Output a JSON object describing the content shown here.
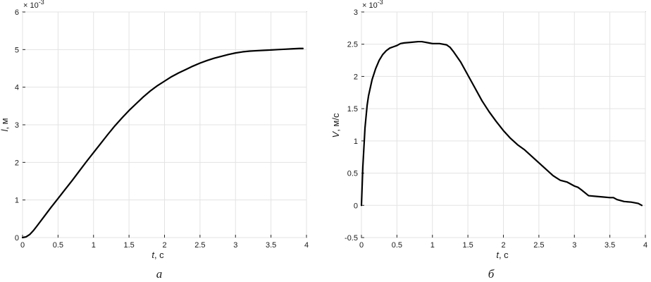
{
  "chart_data": [
    {
      "type": "line",
      "caption": "а",
      "xlabel_var": "t",
      "xlabel_unit": ", с",
      "ylabel_var": "l",
      "ylabel_unit": ", м",
      "y_exponent_base": "× 10",
      "y_exponent_power": "-3",
      "xlim": [
        0,
        4
      ],
      "ylim": [
        0,
        6
      ],
      "xticks": [
        "0",
        "0.5",
        "1",
        "1.5",
        "2",
        "2.5",
        "3",
        "3.5",
        "4"
      ],
      "yticks": [
        "0",
        "1",
        "2",
        "3",
        "4",
        "5",
        "6"
      ],
      "grid": true,
      "series": [
        {
          "x": [
            0,
            0.05,
            0.1,
            0.15,
            0.2,
            0.3,
            0.4,
            0.5,
            0.6,
            0.7,
            0.8,
            0.9,
            1.0,
            1.1,
            1.2,
            1.3,
            1.4,
            1.5,
            1.6,
            1.7,
            1.8,
            1.9,
            2.0,
            2.1,
            2.2,
            2.3,
            2.4,
            2.5,
            2.6,
            2.7,
            2.8,
            2.9,
            3.0,
            3.1,
            3.2,
            3.3,
            3.4,
            3.5,
            3.6,
            3.7,
            3.8,
            3.9,
            3.95
          ],
          "y": [
            0,
            0.02,
            0.08,
            0.18,
            0.3,
            0.55,
            0.8,
            1.04,
            1.28,
            1.52,
            1.77,
            2.02,
            2.26,
            2.5,
            2.74,
            2.97,
            3.18,
            3.38,
            3.56,
            3.74,
            3.9,
            4.04,
            4.16,
            4.28,
            4.38,
            4.47,
            4.56,
            4.64,
            4.71,
            4.77,
            4.82,
            4.87,
            4.91,
            4.94,
            4.96,
            4.97,
            4.98,
            4.99,
            5.0,
            5.01,
            5.02,
            5.03,
            5.03
          ]
        }
      ]
    },
    {
      "type": "line",
      "caption": "б",
      "xlabel_var": "t",
      "xlabel_unit": ", с",
      "ylabel_var": "V",
      "ylabel_unit": ", м/с",
      "y_exponent_base": "× 10",
      "y_exponent_power": "-3",
      "xlim": [
        0,
        4
      ],
      "ylim": [
        -0.5,
        3
      ],
      "xticks": [
        "0",
        "0.5",
        "1",
        "1.5",
        "2",
        "2.5",
        "3",
        "3.5",
        "4"
      ],
      "yticks": [
        "-0.5",
        "0",
        "0.5",
        "1",
        "1.5",
        "2",
        "2.5",
        "3"
      ],
      "grid": true,
      "series": [
        {
          "x": [
            0,
            0.02,
            0.05,
            0.08,
            0.1,
            0.15,
            0.2,
            0.25,
            0.3,
            0.35,
            0.4,
            0.45,
            0.5,
            0.55,
            0.6,
            0.7,
            0.8,
            0.85,
            0.9,
            0.95,
            1.0,
            1.1,
            1.2,
            1.25,
            1.3,
            1.4,
            1.5,
            1.6,
            1.7,
            1.8,
            1.9,
            2.0,
            2.1,
            2.2,
            2.3,
            2.4,
            2.5,
            2.6,
            2.7,
            2.8,
            2.9,
            2.95,
            3.0,
            3.05,
            3.1,
            3.2,
            3.3,
            3.4,
            3.5,
            3.55,
            3.6,
            3.7,
            3.8,
            3.9,
            3.95
          ],
          "y": [
            0,
            0.6,
            1.2,
            1.55,
            1.7,
            1.95,
            2.12,
            2.25,
            2.34,
            2.4,
            2.44,
            2.46,
            2.48,
            2.51,
            2.52,
            2.53,
            2.54,
            2.54,
            2.53,
            2.52,
            2.51,
            2.51,
            2.49,
            2.45,
            2.38,
            2.22,
            2.02,
            1.82,
            1.62,
            1.45,
            1.3,
            1.16,
            1.04,
            0.94,
            0.86,
            0.76,
            0.66,
            0.56,
            0.46,
            0.39,
            0.36,
            0.33,
            0.3,
            0.28,
            0.24,
            0.15,
            0.14,
            0.13,
            0.12,
            0.12,
            0.09,
            0.06,
            0.05,
            0.03,
            0.0
          ]
        }
      ]
    }
  ]
}
